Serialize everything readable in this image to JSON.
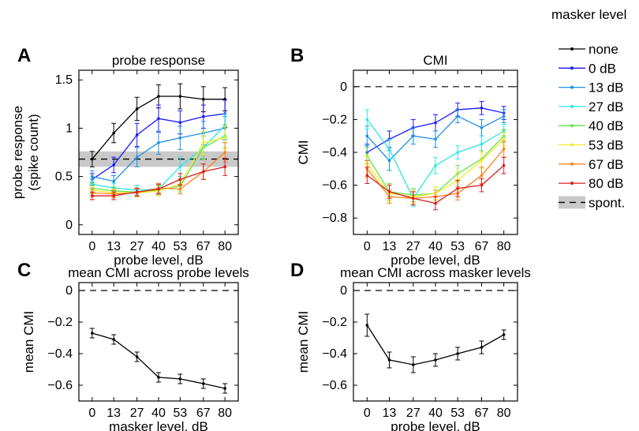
{
  "legend": {
    "title": "masker level",
    "entries": [
      {
        "label": "none",
        "color": "#000000"
      },
      {
        "label": "0 dB",
        "color": "#1a1aff"
      },
      {
        "label": "13 dB",
        "color": "#1c8fe6"
      },
      {
        "label": "27 dB",
        "color": "#2de6e6"
      },
      {
        "label": "40 dB",
        "color": "#66e24a"
      },
      {
        "label": "53 dB",
        "color": "#f0ec2a"
      },
      {
        "label": "67 dB",
        "color": "#ff7f1a"
      },
      {
        "label": "80 dB",
        "color": "#d81e1e"
      },
      {
        "label": "spont.",
        "color": "#000000",
        "style": "dashed-with-grey-band"
      }
    ]
  },
  "chart_data": [
    {
      "panel": "A",
      "type": "line",
      "title": "probe response",
      "xlabel": "probe level, dB",
      "ylabel": "probe response\n(spike count)",
      "x": [
        0,
        13,
        27,
        40,
        53,
        67,
        80
      ],
      "xticks": [
        "0",
        "13",
        "27",
        "40",
        "53",
        "67",
        "80"
      ],
      "ylim": [
        -0.1,
        1.6
      ],
      "yticks": [
        0,
        0.5,
        1,
        1.5
      ],
      "ytick_labels": [
        "0",
        "0.5",
        "1",
        "1.5"
      ],
      "reference": {
        "spont_mean": 0.68,
        "band": [
          0.6,
          0.76
        ],
        "style": "dashed"
      },
      "series": [
        {
          "name": "none",
          "color": "#000000",
          "values": [
            0.68,
            0.95,
            1.2,
            1.33,
            1.33,
            1.3,
            1.3
          ],
          "err": [
            0.08,
            0.1,
            0.12,
            0.12,
            0.13,
            0.13,
            0.12
          ]
        },
        {
          "name": "0 dB",
          "color": "#1a1aff",
          "values": [
            0.47,
            0.62,
            0.93,
            1.1,
            1.06,
            1.12,
            1.15
          ],
          "err": [
            0.06,
            0.08,
            0.12,
            0.14,
            0.12,
            0.12,
            0.14
          ]
        },
        {
          "name": "13 dB",
          "color": "#1c8fe6",
          "values": [
            0.5,
            0.45,
            0.7,
            0.85,
            0.9,
            0.95,
            1.0
          ],
          "err": [
            0.06,
            0.06,
            0.1,
            0.12,
            0.12,
            0.12,
            0.12
          ]
        },
        {
          "name": "27 dB",
          "color": "#2de6e6",
          "values": [
            0.42,
            0.38,
            0.36,
            0.37,
            0.6,
            0.8,
            1.03
          ],
          "err": [
            0.05,
            0.05,
            0.05,
            0.06,
            0.1,
            0.12,
            0.12
          ]
        },
        {
          "name": "40 dB",
          "color": "#66e24a",
          "values": [
            0.38,
            0.35,
            0.34,
            0.36,
            0.4,
            0.8,
            0.92
          ],
          "err": [
            0.05,
            0.04,
            0.04,
            0.05,
            0.06,
            0.12,
            0.12
          ]
        },
        {
          "name": "53 dB",
          "color": "#f0ec2a",
          "values": [
            0.36,
            0.33,
            0.33,
            0.35,
            0.42,
            0.85,
            0.9
          ],
          "err": [
            0.04,
            0.04,
            0.04,
            0.05,
            0.06,
            0.12,
            0.12
          ]
        },
        {
          "name": "67 dB",
          "color": "#ff7f1a",
          "values": [
            0.33,
            0.32,
            0.33,
            0.38,
            0.37,
            0.55,
            0.75
          ],
          "err": [
            0.04,
            0.04,
            0.04,
            0.05,
            0.05,
            0.08,
            0.1
          ]
        },
        {
          "name": "80 dB",
          "color": "#d81e1e",
          "values": [
            0.3,
            0.3,
            0.34,
            0.37,
            0.47,
            0.55,
            0.6
          ],
          "err": [
            0.04,
            0.04,
            0.04,
            0.05,
            0.06,
            0.08,
            0.09
          ]
        }
      ]
    },
    {
      "panel": "B",
      "type": "line",
      "title": "CMI",
      "xlabel": "probe level, dB",
      "ylabel": "CMI",
      "x": [
        0,
        13,
        27,
        40,
        53,
        67,
        80
      ],
      "xticks": [
        "0",
        "13",
        "27",
        "40",
        "53",
        "67",
        "80"
      ],
      "ylim": [
        -0.9,
        0.1
      ],
      "yticks": [
        0,
        -0.2,
        -0.4,
        -0.6,
        -0.8
      ],
      "ytick_labels": [
        "0",
        "−0.2",
        "−0.4",
        "−0.6",
        "−0.8"
      ],
      "reference": {
        "value": 0,
        "style": "dashed"
      },
      "series": [
        {
          "name": "0 dB",
          "color": "#1a1aff",
          "values": [
            -0.4,
            -0.32,
            -0.25,
            -0.22,
            -0.14,
            -0.13,
            -0.16
          ],
          "err": [
            0.05,
            0.05,
            0.05,
            0.05,
            0.04,
            0.04,
            0.04
          ]
        },
        {
          "name": "13 dB",
          "color": "#1c8fe6",
          "values": [
            -0.3,
            -0.45,
            -0.3,
            -0.32,
            -0.18,
            -0.25,
            -0.18
          ],
          "err": [
            0.06,
            0.06,
            0.05,
            0.05,
            0.04,
            0.05,
            0.04
          ]
        },
        {
          "name": "27 dB",
          "color": "#2de6e6",
          "values": [
            -0.2,
            -0.38,
            -0.68,
            -0.48,
            -0.4,
            -0.35,
            -0.27
          ],
          "err": [
            0.06,
            0.06,
            0.05,
            0.05,
            0.04,
            0.05,
            0.04
          ]
        },
        {
          "name": "40 dB",
          "color": "#66e24a",
          "values": [
            -0.42,
            -0.64,
            -0.66,
            -0.65,
            -0.53,
            -0.44,
            -0.3
          ],
          "err": [
            0.05,
            0.05,
            0.04,
            0.04,
            0.05,
            0.05,
            0.04
          ]
        },
        {
          "name": "53 dB",
          "color": "#f0ec2a",
          "values": [
            -0.47,
            -0.65,
            -0.67,
            -0.65,
            -0.57,
            -0.45,
            -0.32
          ],
          "err": [
            0.05,
            0.05,
            0.04,
            0.04,
            0.05,
            0.05,
            0.04
          ]
        },
        {
          "name": "67 dB",
          "color": "#ff7f1a",
          "values": [
            -0.5,
            -0.67,
            -0.68,
            -0.67,
            -0.65,
            -0.54,
            -0.38
          ],
          "err": [
            0.05,
            0.04,
            0.04,
            0.04,
            0.04,
            0.05,
            0.05
          ]
        },
        {
          "name": "80 dB",
          "color": "#d81e1e",
          "values": [
            -0.54,
            -0.64,
            -0.68,
            -0.71,
            -0.62,
            -0.6,
            -0.48
          ],
          "err": [
            0.05,
            0.04,
            0.04,
            0.04,
            0.05,
            0.04,
            0.05
          ]
        }
      ]
    },
    {
      "panel": "C",
      "type": "line",
      "title": "mean CMI across probe levels",
      "xlabel": "masker level, dB",
      "ylabel": "mean CMI",
      "x": [
        0,
        13,
        27,
        40,
        53,
        67,
        80
      ],
      "xticks": [
        "0",
        "13",
        "27",
        "40",
        "53",
        "67",
        "80"
      ],
      "ylim": [
        -0.7,
        0.05
      ],
      "yticks": [
        0,
        -0.2,
        -0.4,
        -0.6
      ],
      "ytick_labels": [
        "0",
        "−0.2",
        "−0.4",
        "−0.6"
      ],
      "reference": {
        "value": 0,
        "style": "dashed"
      },
      "series": [
        {
          "color": "#000000",
          "values": [
            -0.27,
            -0.31,
            -0.42,
            -0.55,
            -0.56,
            -0.59,
            -0.62
          ],
          "err": [
            0.03,
            0.03,
            0.03,
            0.03,
            0.03,
            0.03,
            0.03
          ]
        }
      ]
    },
    {
      "panel": "D",
      "type": "line",
      "title": "mean CMI across masker levels",
      "xlabel": "probe level, dB",
      "ylabel": "mean CMI",
      "x": [
        0,
        13,
        27,
        40,
        53,
        67,
        80
      ],
      "xticks": [
        "0",
        "13",
        "27",
        "40",
        "53",
        "67",
        "80"
      ],
      "ylim": [
        -0.7,
        0.05
      ],
      "yticks": [
        0,
        -0.2,
        -0.4,
        -0.6
      ],
      "ytick_labels": [
        "0",
        "−0.2",
        "−0.4",
        "−0.6"
      ],
      "reference": {
        "value": 0,
        "style": "dashed"
      },
      "series": [
        {
          "color": "#000000",
          "values": [
            -0.22,
            -0.44,
            -0.47,
            -0.44,
            -0.4,
            -0.36,
            -0.28
          ],
          "err": [
            0.07,
            0.05,
            0.05,
            0.04,
            0.04,
            0.04,
            0.03
          ]
        }
      ]
    }
  ]
}
